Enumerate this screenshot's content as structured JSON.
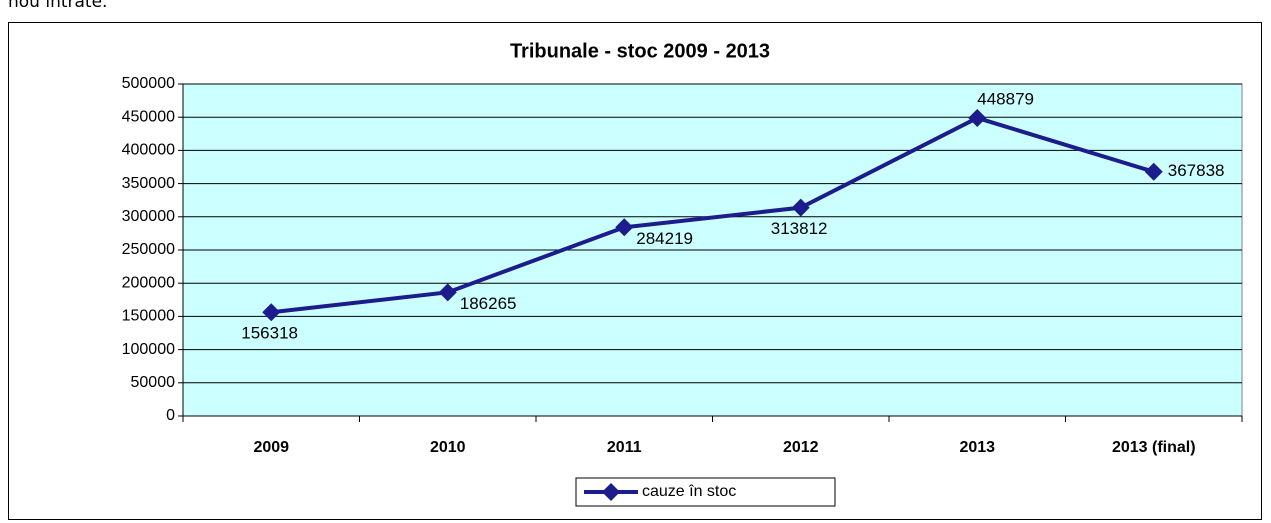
{
  "page_fragment": "nou intrate.",
  "chart_data": {
    "type": "line",
    "title": "Tribunale - stoc 2009 - 2013",
    "categories": [
      "2009",
      "2010",
      "2011",
      "2012",
      "2013",
      "2013 (final)"
    ],
    "series": [
      {
        "name": "cauze în stoc",
        "color": "#1c1c8c",
        "values": [
          156318,
          186265,
          284219,
          313812,
          448879,
          367838
        ]
      }
    ],
    "ylim": [
      0,
      500000
    ],
    "yticks": [
      0,
      50000,
      100000,
      150000,
      200000,
      250000,
      300000,
      350000,
      400000,
      450000,
      500000
    ],
    "grid": true,
    "legend": "bottom",
    "plot_background": "#ccffff"
  }
}
